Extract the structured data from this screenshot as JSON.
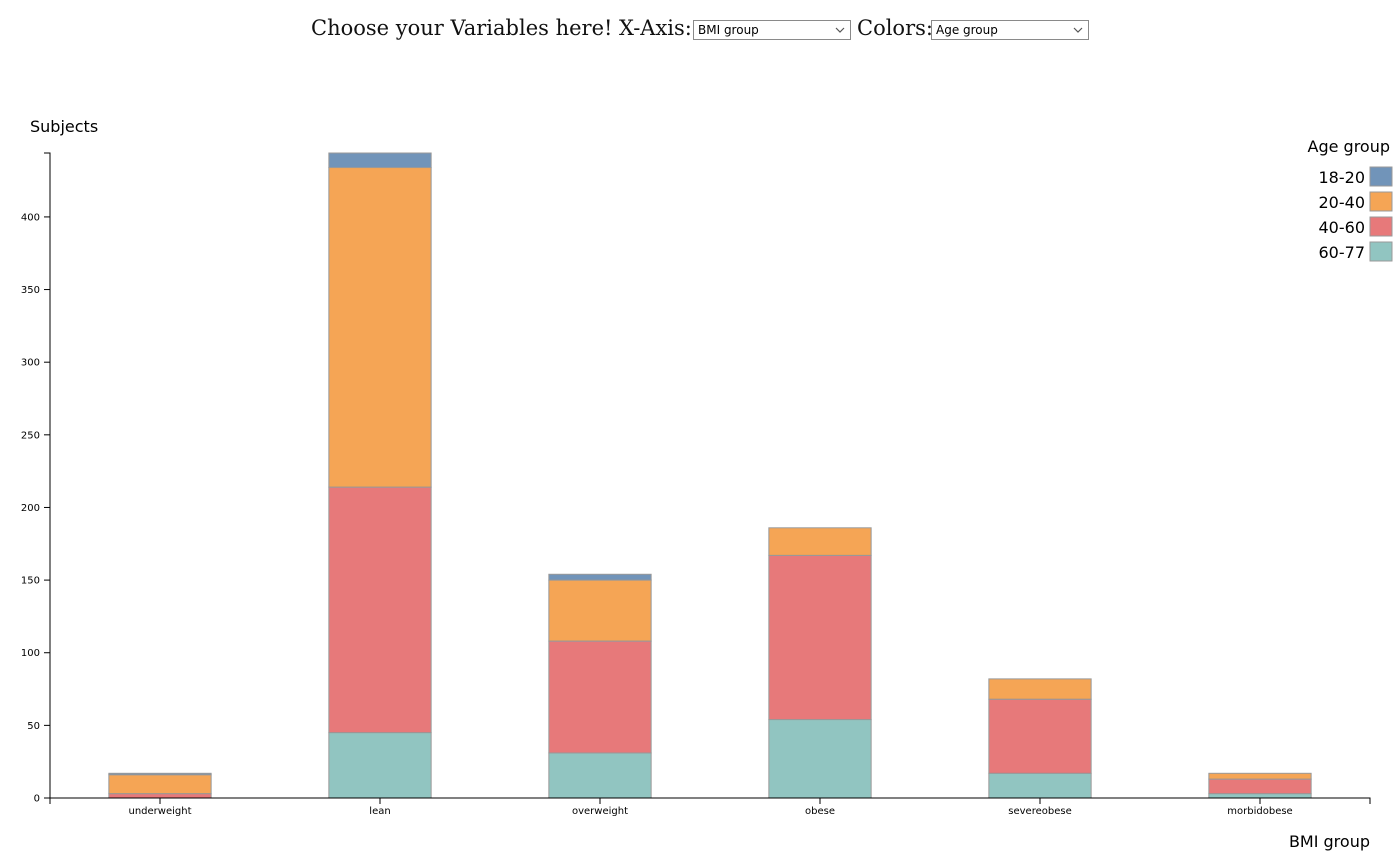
{
  "controls": {
    "prompt": "Choose your Variables here!",
    "x_axis_label": "X-Axis:",
    "x_axis_value": "BMI group",
    "colors_label": "Colors:",
    "colors_value": "Age group"
  },
  "chart_data": {
    "type": "bar",
    "stacked": true,
    "ylabel": "Subjects",
    "xlabel": "BMI group",
    "ylim": [
      0,
      444
    ],
    "yticks": [
      0,
      50,
      100,
      150,
      200,
      250,
      300,
      350,
      400
    ],
    "categories": [
      "underweight",
      "lean",
      "overweight",
      "obese",
      "severeobese",
      "morbidobese"
    ],
    "legend": {
      "title": "Age group",
      "position": "top-right"
    },
    "series": [
      {
        "name": "60-77",
        "color": "#76b7b2",
        "values": [
          0,
          45,
          31,
          54,
          17,
          3
        ]
      },
      {
        "name": "40-60",
        "color": "#e15759",
        "values": [
          3,
          169,
          77,
          113,
          51,
          10
        ]
      },
      {
        "name": "20-40",
        "color": "#f28e2b",
        "values": [
          13,
          220,
          42,
          19,
          14,
          4
        ]
      },
      {
        "name": "18-20",
        "color": "#4e79a7",
        "values": [
          1,
          10,
          4,
          0,
          0,
          0
        ]
      }
    ],
    "legend_order": [
      "18-20",
      "20-40",
      "40-60",
      "60-77"
    ]
  }
}
